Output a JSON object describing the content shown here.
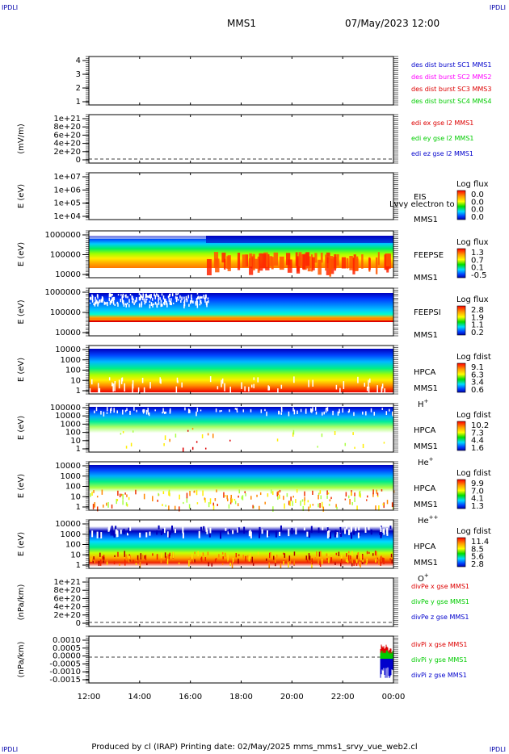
{
  "header": {
    "corner_label": "IPDLI",
    "spacecraft": "MMS1",
    "datetime": "07/May/2023 12:00"
  },
  "footer": {
    "text": "Produced by cl (IRAP)    Printing date: 02/May/2025    mms_mms1_srvy_vue_web2.cl"
  },
  "colors": {
    "blue": "#0000cc",
    "magenta": "#ff00ff",
    "red": "#dd0000",
    "green": "#00cc00"
  },
  "time_axis": {
    "ticks": [
      "12:00",
      "14:00",
      "16:00",
      "18:00",
      "20:00",
      "22:00",
      "00:00"
    ]
  },
  "chart_data": [
    {
      "id": "dist",
      "type": "line",
      "ylabel": "",
      "yticks": [
        "4",
        "3",
        "2",
        "1"
      ],
      "series": [
        {
          "name": "des dist burst SC1 MMS1",
          "color": "#0000cc",
          "values": []
        },
        {
          "name": "des dist burst SC2 MMS2",
          "color": "#ff00ff",
          "values": []
        },
        {
          "name": "des dist burst SC3 MMS3",
          "color": "#dd0000",
          "values": []
        },
        {
          "name": "des dist burst SC4 MMS4",
          "color": "#00cc00",
          "values": []
        }
      ]
    },
    {
      "id": "edi",
      "type": "line",
      "ylabel": "(mV/m)",
      "yticks": [
        "1e+21",
        "8e+20",
        "6e+20",
        "4e+20",
        "2e+20",
        "0"
      ],
      "series": [
        {
          "name": "edi ex gse l2 MMS1",
          "color": "#dd0000",
          "values": []
        },
        {
          "name": "edi ey gse l2 MMS1",
          "color": "#00cc00",
          "values": []
        },
        {
          "name": "edi ez gse l2 MMS1",
          "color": "#0000cc",
          "values": []
        }
      ]
    },
    {
      "id": "eis",
      "type": "heatmap",
      "ylabel": "E (eV)",
      "yticks": [
        "1e+07",
        "1e+06",
        "1e+05",
        "1e+04"
      ],
      "labels": [
        "EIS",
        "MMS1"
      ],
      "overlay": "Lvvy electron to",
      "colorbar": {
        "title": "Log flux",
        "values": [
          "0.0",
          "0.0",
          "0.0",
          "0.0"
        ]
      },
      "data_present": false
    },
    {
      "id": "feepse",
      "type": "heatmap",
      "ylabel": "E (eV)",
      "yticks": [
        "1000000",
        "100000",
        "10000"
      ],
      "labels": [
        "FEEPSE",
        "MMS1"
      ],
      "colorbar": {
        "title": "Log flux",
        "values": [
          "1.3",
          "0.7",
          "0.1",
          "-0.5"
        ]
      },
      "data_present": true
    },
    {
      "id": "feepsi",
      "type": "heatmap",
      "ylabel": "E (eV)",
      "yticks": [
        "1000000",
        "100000",
        "10000"
      ],
      "labels": [
        "FEEPSI",
        "MMS1"
      ],
      "colorbar": {
        "title": "Log flux",
        "values": [
          "2.8",
          "1.9",
          "1.1",
          "0.2"
        ]
      },
      "data_present": true
    },
    {
      "id": "hpca_h",
      "type": "heatmap",
      "ylabel": "E (eV)",
      "yticks": [
        "10000",
        "1000",
        "100",
        "10",
        "1"
      ],
      "labels": [
        "HPCA",
        "MMS1"
      ],
      "species": "H",
      "species_sup": "+",
      "colorbar": {
        "title": "Log fdist",
        "values": [
          "9.1",
          "6.3",
          "3.4",
          "0.6"
        ]
      },
      "data_present": true
    },
    {
      "id": "hpca_he",
      "type": "heatmap",
      "ylabel": "E (eV)",
      "yticks": [
        "100000",
        "10000",
        "1000",
        "100",
        "10",
        "1"
      ],
      "labels": [
        "HPCA",
        "MMS1"
      ],
      "species": "He",
      "species_sup": "+",
      "colorbar": {
        "title": "Log fdist",
        "values": [
          "10.2",
          "7.3",
          "4.4",
          "1.6"
        ]
      },
      "data_present": true
    },
    {
      "id": "hpca_he2",
      "type": "heatmap",
      "ylabel": "E (eV)",
      "yticks": [
        "10000",
        "1000",
        "100",
        "10",
        "1"
      ],
      "labels": [
        "HPCA",
        "MMS1"
      ],
      "species": "He",
      "species_sup": "++",
      "colorbar": {
        "title": "Log fdist",
        "values": [
          "9.9",
          "7.0",
          "4.1",
          "1.3"
        ]
      },
      "data_present": true
    },
    {
      "id": "hpca_o",
      "type": "heatmap",
      "ylabel": "E (eV)",
      "yticks": [
        "10000",
        "1000",
        "100",
        "10",
        "1"
      ],
      "labels": [
        "HPCA",
        "MMS1"
      ],
      "species": "O",
      "species_sup": "+",
      "colorbar": {
        "title": "Log fdist",
        "values": [
          "11.4",
          "8.5",
          "5.6",
          "2.8"
        ]
      },
      "data_present": true
    },
    {
      "id": "divpe",
      "type": "line",
      "ylabel": "(nPa/km)",
      "yticks": [
        "1e+21",
        "8e+20",
        "6e+20",
        "4e+20",
        "2e+20",
        "0"
      ],
      "series": [
        {
          "name": "divPe x gse MMS1",
          "color": "#dd0000",
          "values": []
        },
        {
          "name": "divPe y gse MMS1",
          "color": "#00cc00",
          "values": []
        },
        {
          "name": "divPe z gse MMS1",
          "color": "#0000cc",
          "values": []
        }
      ]
    },
    {
      "id": "divpi",
      "type": "line",
      "ylabel": "(nPa/km)",
      "yticks": [
        "0.0010",
        "0.0005",
        "0.0000",
        "-0.0005",
        "-0.0010",
        "-0.0015"
      ],
      "series": [
        {
          "name": "divPi x gse MMS1",
          "color": "#dd0000"
        },
        {
          "name": "divPi y gse MMS1",
          "color": "#00cc00"
        },
        {
          "name": "divPi z gse MMS1",
          "color": "#0000cc"
        }
      ],
      "data_note": "data only near 23:30-00:00"
    }
  ]
}
